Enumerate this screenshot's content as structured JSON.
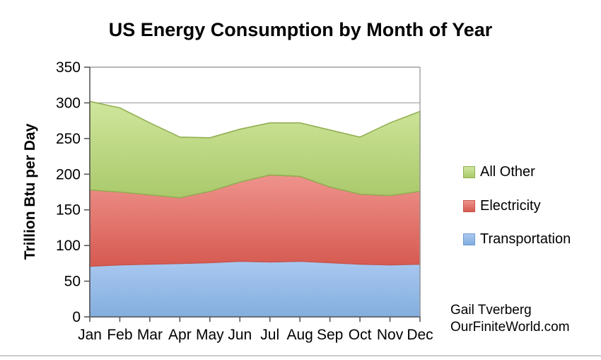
{
  "page": {
    "background": "#ffffff"
  },
  "attribution": {
    "line1": "Gail Tverberg",
    "line2": "OurFiniteWorld.com"
  },
  "chart_data": {
    "type": "area",
    "stacked": true,
    "title": "US Energy Consumption by Month of Year",
    "ylabel": "Trillion Btu per Day",
    "xlabel": "",
    "months": [
      "Jan",
      "Feb",
      "Mar",
      "Apr",
      "May",
      "Jun",
      "Jul",
      "Aug",
      "Sep",
      "Oct",
      "Nov",
      "Dec"
    ],
    "ylim": [
      0,
      350
    ],
    "ytick_step": 50,
    "grid": "horizontal gridlines behind areas",
    "legend_position": "right",
    "legend_order_top_to_bottom": [
      "All Other",
      "Electricity",
      "Transportation"
    ],
    "series": [
      {
        "name": "Transportation",
        "values": [
          71,
          73,
          74,
          75,
          76,
          78,
          77,
          78,
          76,
          74,
          73,
          74
        ],
        "fill_top": "#a9c8f0",
        "fill_bottom": "#83aede",
        "stroke": "#6f9bd1"
      },
      {
        "name": "Electricity",
        "values": [
          107,
          102,
          97,
          92,
          100,
          111,
          122,
          119,
          106,
          98,
          97,
          102
        ],
        "fill_top": "#ee938c",
        "fill_bottom": "#d65a51",
        "stroke": "#c9564d"
      },
      {
        "name": "All Other",
        "values": [
          124,
          118,
          101,
          85,
          75,
          74,
          73,
          75,
          80,
          80,
          102,
          112
        ],
        "fill_top": "#cfe69c",
        "fill_bottom": "#aac96b",
        "stroke": "#93af52"
      }
    ],
    "stacked_totals": [
      302,
      293,
      272,
      252,
      251,
      263,
      272,
      272,
      262,
      252,
      272,
      288
    ],
    "colors": {
      "gridline": "#9f9f9f",
      "axis": "#595959",
      "frame": "#9f9f9f",
      "text": "#000000"
    }
  }
}
